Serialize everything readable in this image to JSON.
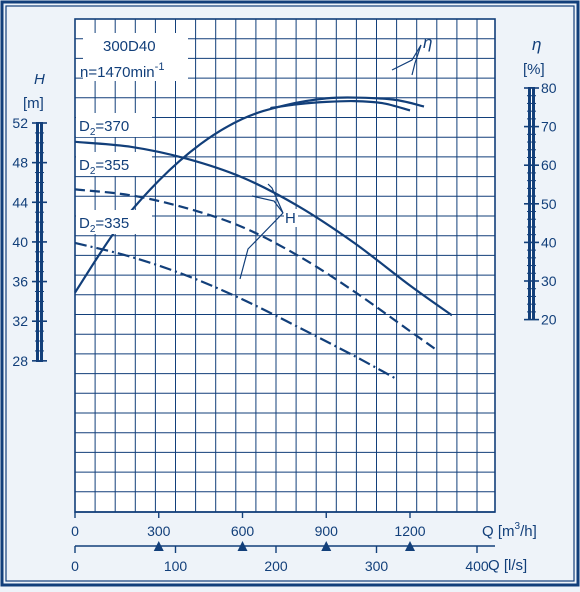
{
  "chart_data": {
    "type": "line",
    "annotations": {
      "pump_model": "300D40",
      "speed": "n=1470min",
      "speed_exp": "-1",
      "curve_label_H": "H",
      "curve_label_eta": "η"
    },
    "axes": {
      "left": {
        "symbol": "H",
        "unit": "[m]",
        "ticks": [
          "52",
          "48",
          "44",
          "40",
          "36",
          "32",
          "28"
        ],
        "range": [
          28,
          52
        ]
      },
      "right": {
        "symbol": "η",
        "unit": "[%]",
        "ticks": [
          "80",
          "70",
          "60",
          "50",
          "40",
          "30",
          "20"
        ],
        "range": [
          20,
          80
        ]
      },
      "bottom_m3h": {
        "label": "Q [m",
        "label_exp": "3",
        "label_tail": "/h]",
        "ticks": [
          "0",
          "300",
          "600",
          "900",
          "1200"
        ],
        "values": [
          0,
          300,
          600,
          900,
          1200
        ]
      },
      "bottom_ls": {
        "label": "Q [l/s]",
        "ticks": [
          "0",
          "100",
          "200",
          "300",
          "400"
        ],
        "values": [
          0,
          100,
          200,
          300,
          400
        ]
      }
    },
    "series": [
      {
        "name": "D2=370",
        "label_main": "D",
        "label_sub": "2",
        "label_tail": "=370",
        "style": "solid",
        "unit": "m",
        "points": [
          [
            0,
            50.1
          ],
          [
            200,
            49.6
          ],
          [
            400,
            48.4
          ],
          [
            600,
            46.5
          ],
          [
            800,
            43.6
          ],
          [
            1000,
            39.9
          ],
          [
            1200,
            35.6
          ],
          [
            1350,
            32.6
          ]
        ]
      },
      {
        "name": "D2=355",
        "label_main": "D",
        "label_sub": "2",
        "label_tail": "=355",
        "style": "dashed",
        "unit": "m",
        "points": [
          [
            0,
            45.3
          ],
          [
            200,
            44.7
          ],
          [
            400,
            43.4
          ],
          [
            600,
            41.5
          ],
          [
            800,
            38.6
          ],
          [
            1000,
            35.0
          ],
          [
            1200,
            31.0
          ],
          [
            1300,
            29.0
          ]
        ]
      },
      {
        "name": "D2=335",
        "label_main": "D",
        "label_sub": "2",
        "label_tail": "=335",
        "style": "dashdot",
        "unit": "m",
        "points": [
          [
            0,
            39.9
          ],
          [
            200,
            38.5
          ],
          [
            400,
            36.6
          ],
          [
            600,
            34.2
          ],
          [
            800,
            31.4
          ],
          [
            1000,
            28.5
          ],
          [
            1150,
            26.2
          ]
        ]
      },
      {
        "name": "eta_370",
        "style": "solid",
        "unit": "%",
        "points": [
          [
            0,
            27
          ],
          [
            150,
            43.5
          ],
          [
            300,
            56
          ],
          [
            450,
            65.5
          ],
          [
            600,
            72
          ],
          [
            750,
            75.5
          ],
          [
            900,
            77.3
          ],
          [
            1020,
            77.5
          ],
          [
            1150,
            76.9
          ],
          [
            1250,
            75.2
          ]
        ]
      },
      {
        "name": "eta_355",
        "style": "solid",
        "unit": "%",
        "points": [
          [
            700,
            74.8
          ],
          [
            800,
            75.8
          ],
          [
            900,
            76.4
          ],
          [
            1000,
            76.6
          ],
          [
            1100,
            76.1
          ],
          [
            1200,
            74.2
          ]
        ]
      }
    ],
    "grid": true,
    "xlim_m3h": [
      0,
      1440
    ],
    "ylim_m": [
      28,
      52
    ]
  }
}
